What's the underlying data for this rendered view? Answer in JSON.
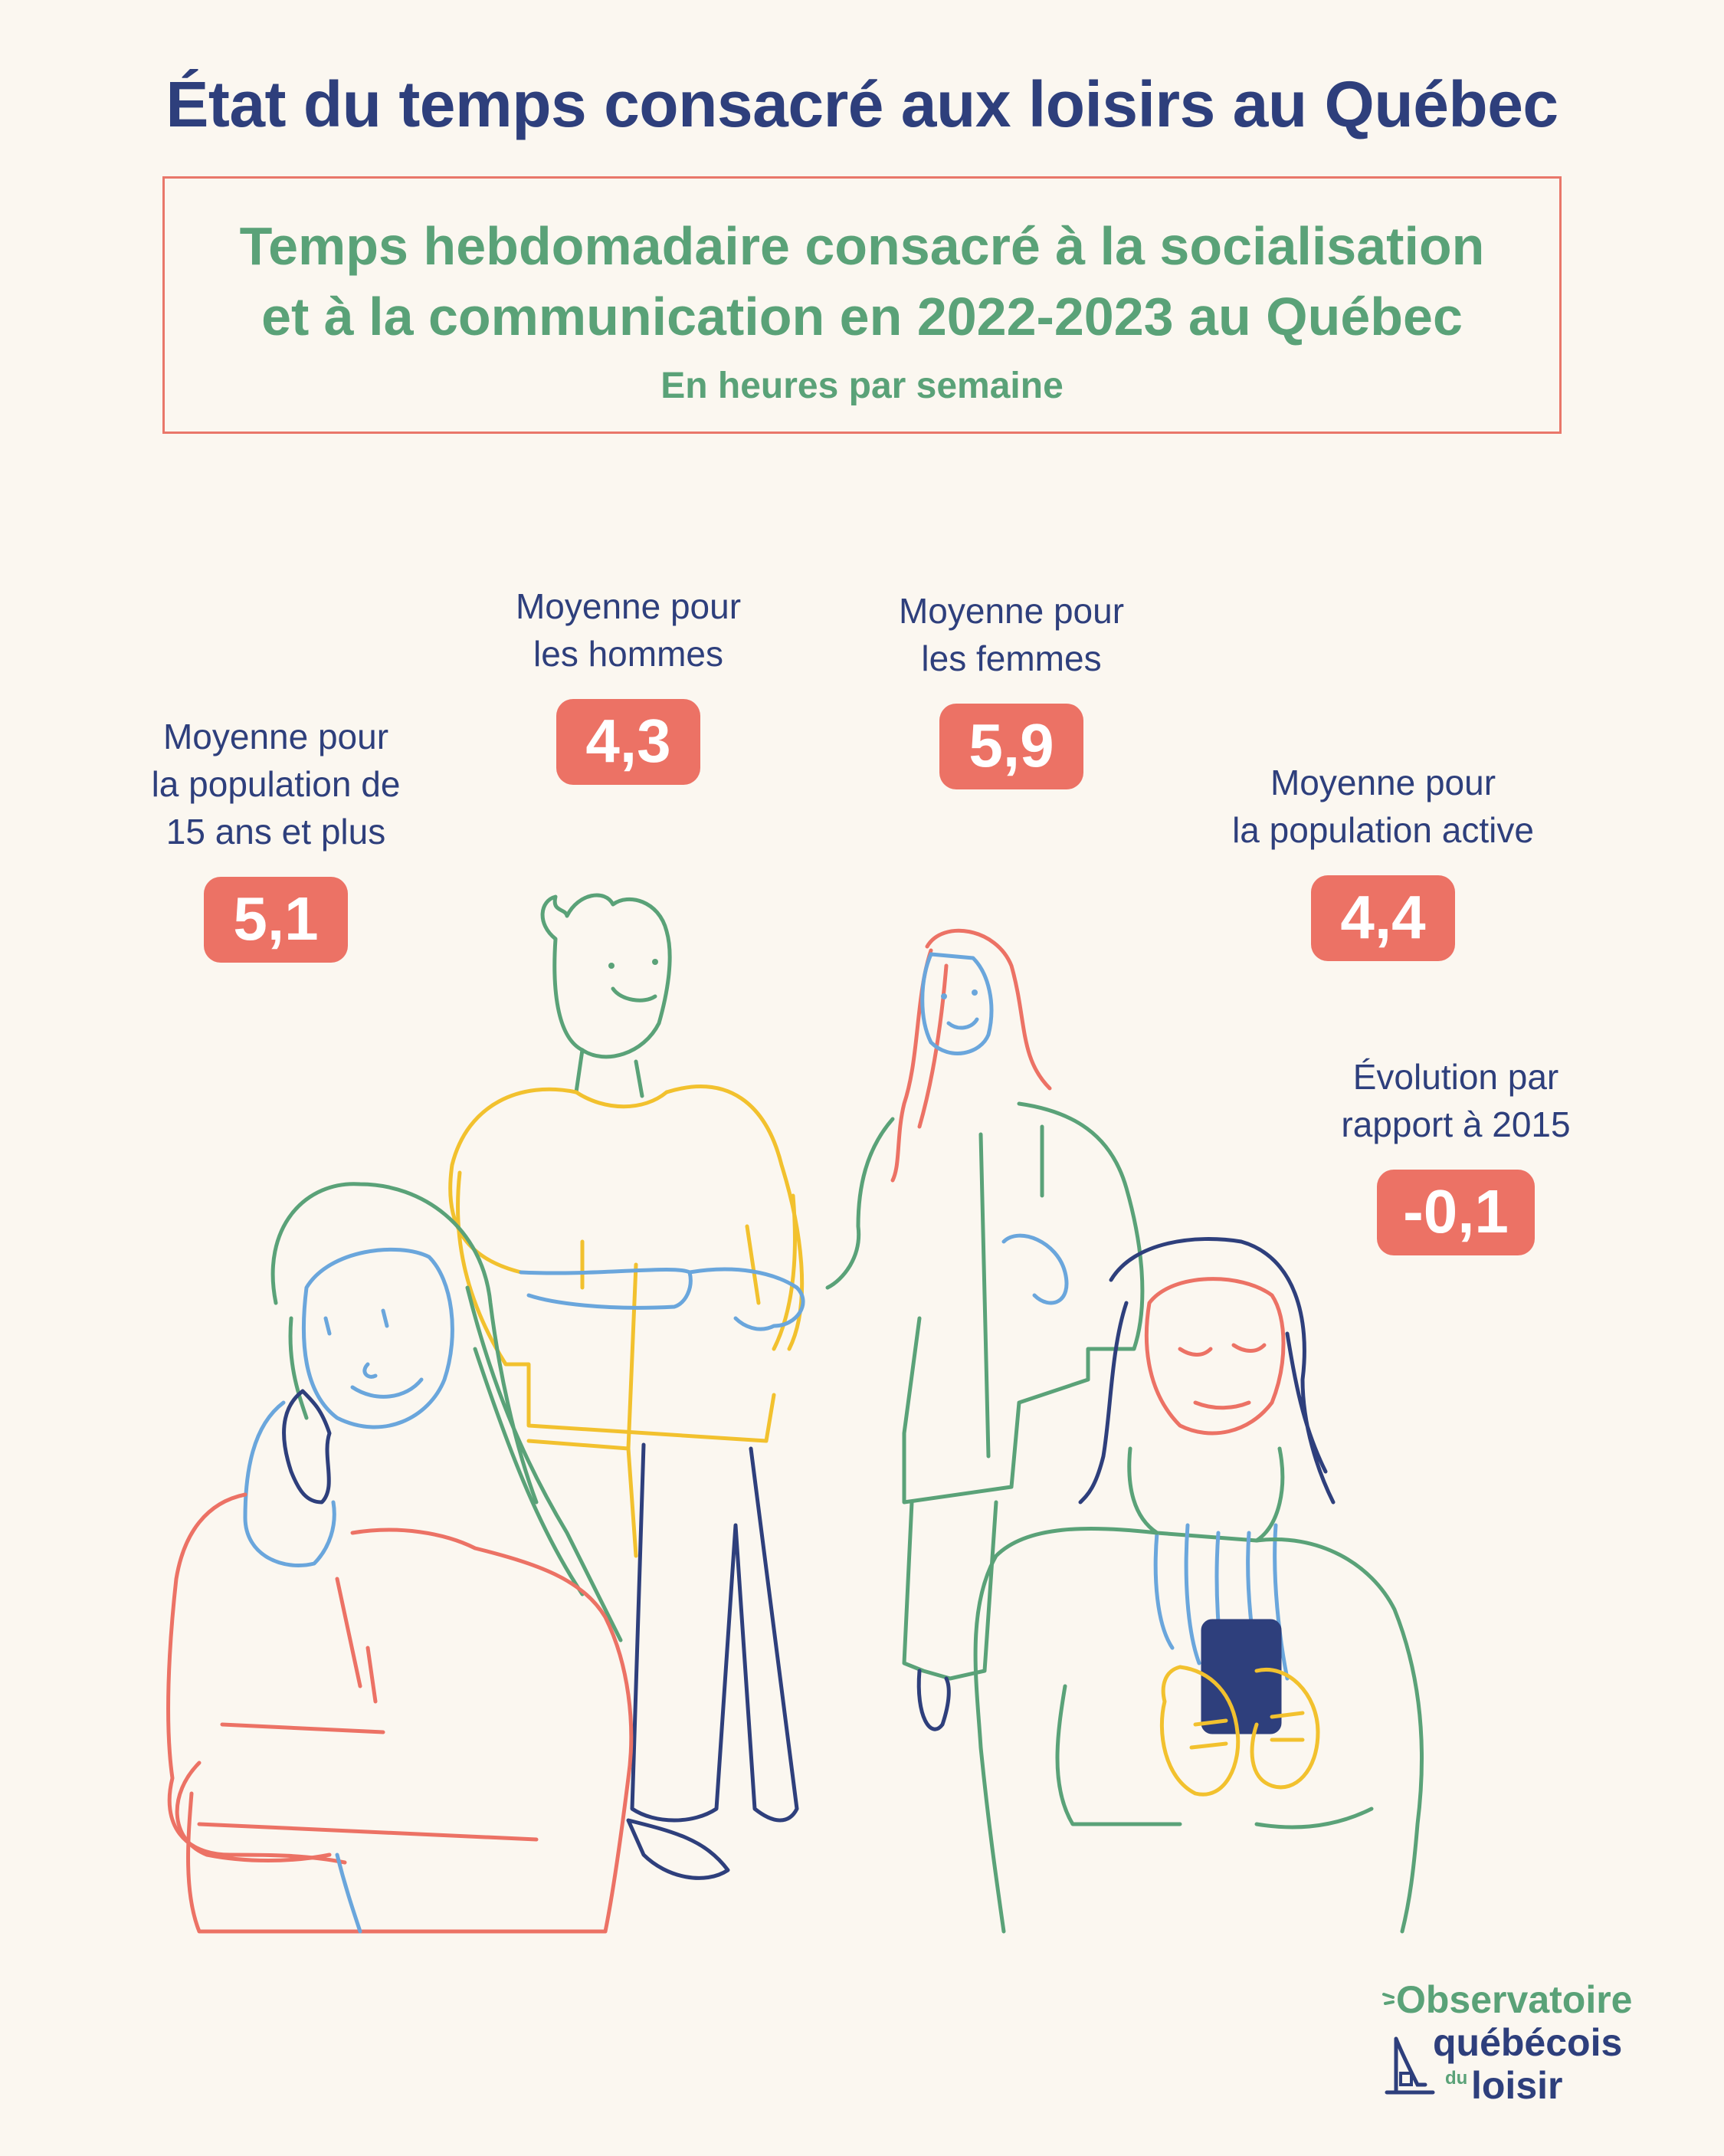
{
  "title": "État du temps consacré aux loisirs au Québec",
  "subtitle": {
    "line1": "Temps hebdomadaire consacré à la socialisation",
    "line2": "et à la communication en 2022-2023 au Québec",
    "unit": "En heures par semaine"
  },
  "stats": [
    {
      "label": "Moyenne pour\nla population de\n15 ans et plus",
      "value": "5,1"
    },
    {
      "label": "Moyenne pour\nles hommes",
      "value": "4,3"
    },
    {
      "label": "Moyenne pour\nles femmes",
      "value": "5,9"
    },
    {
      "label": "Moyenne pour\nla population active",
      "value": "4,4"
    },
    {
      "label": "Évolution par\nrapport à 2015",
      "value": "-0,1"
    }
  ],
  "logo": {
    "line1": "Observatoire",
    "line2": "québécois",
    "line3": "du",
    "line4": "loisir",
    "icon": "observatory-icon"
  },
  "colors": {
    "navy": "#2e3f7c",
    "green": "#5aa278",
    "coral": "#ec7265",
    "blue": "#6aa6dc",
    "yellow": "#f2c12e",
    "background": "#fbf7f0"
  }
}
